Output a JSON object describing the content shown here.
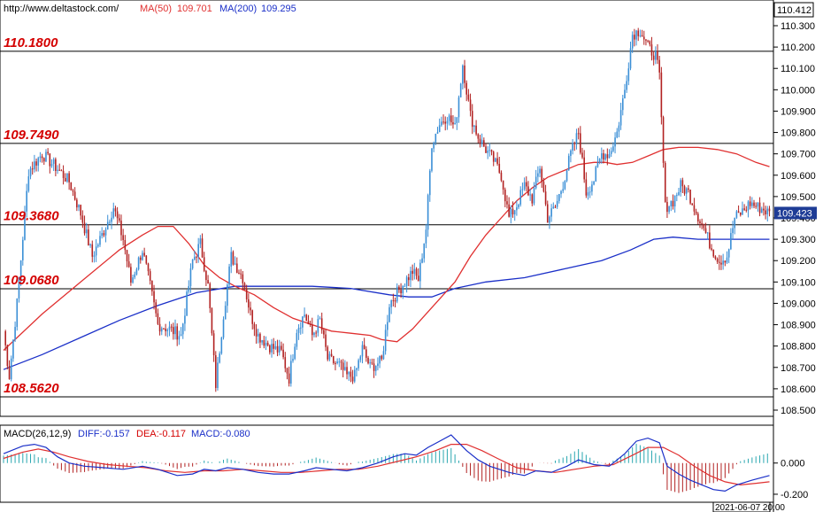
{
  "header": {
    "site": "http://www.deltastock.com/",
    "ma50_label": "MA(50)",
    "ma50_value": "109.701",
    "ma200_label": "MA(200)",
    "ma200_value": "109.295"
  },
  "macd_header": {
    "label": "MACD(26,12,9)",
    "diff": "DIFF:-0.157",
    "dea": "DEA:-0.117",
    "macd": "MACD:-0.080"
  },
  "colors": {
    "up": "#3b8fd6",
    "down": "#b22222",
    "ma50": "#e03030",
    "ma200": "#1a2fc8",
    "level_text": "#d40000",
    "current_tag": "#1e3c96"
  },
  "chart_data": {
    "type": "candlestick",
    "y_range": [
      108.45,
      110.33
    ],
    "y_ticks": [
      "110.300",
      "110.200",
      "110.100",
      "110.000",
      "109.900",
      "109.800",
      "109.700",
      "109.600",
      "109.500",
      "109.400",
      "109.300",
      "109.200",
      "109.100",
      "109.000",
      "108.900",
      "108.800",
      "108.700",
      "108.600",
      "108.500"
    ],
    "top_price_label": "110.412",
    "current_price_label": "109.423",
    "current_price": 109.423,
    "levels": [
      {
        "label": "110.1800",
        "value": 110.18
      },
      {
        "label": "109.7490",
        "value": 109.749
      },
      {
        "label": "109.3680",
        "value": 109.368
      },
      {
        "label": "109.0680",
        "value": 109.068
      },
      {
        "label": "108.5620",
        "value": 108.562
      }
    ],
    "anchors": [
      [
        0,
        108.87
      ],
      [
        3,
        108.66
      ],
      [
        7,
        109.0
      ],
      [
        13,
        109.62
      ],
      [
        20,
        109.7
      ],
      [
        28,
        109.63
      ],
      [
        34,
        109.57
      ],
      [
        40,
        109.42
      ],
      [
        46,
        109.22
      ],
      [
        52,
        109.34
      ],
      [
        57,
        109.45
      ],
      [
        62,
        109.3
      ],
      [
        66,
        109.1
      ],
      [
        72,
        109.25
      ],
      [
        76,
        109.08
      ],
      [
        80,
        108.9
      ],
      [
        86,
        108.88
      ],
      [
        92,
        108.85
      ],
      [
        98,
        109.2
      ],
      [
        102,
        109.28
      ],
      [
        106,
        109.08
      ],
      [
        110,
        108.62
      ],
      [
        114,
        108.95
      ],
      [
        118,
        109.22
      ],
      [
        124,
        109.12
      ],
      [
        128,
        108.95
      ],
      [
        132,
        108.85
      ],
      [
        138,
        108.8
      ],
      [
        144,
        108.77
      ],
      [
        148,
        108.65
      ],
      [
        152,
        108.88
      ],
      [
        156,
        108.95
      ],
      [
        160,
        108.85
      ],
      [
        164,
        108.92
      ],
      [
        168,
        108.74
      ],
      [
        174,
        108.71
      ],
      [
        178,
        108.66
      ],
      [
        182,
        108.66
      ],
      [
        186,
        108.79
      ],
      [
        190,
        108.7
      ],
      [
        196,
        108.73
      ],
      [
        200,
        109.0
      ],
      [
        204,
        109.05
      ],
      [
        208,
        109.1
      ],
      [
        212,
        109.15
      ],
      [
        215,
        109.11
      ],
      [
        219,
        109.35
      ],
      [
        222,
        109.75
      ],
      [
        226,
        109.84
      ],
      [
        230,
        109.88
      ],
      [
        234,
        109.82
      ],
      [
        238,
        110.12
      ],
      [
        242,
        109.88
      ],
      [
        246,
        109.78
      ],
      [
        250,
        109.72
      ],
      [
        254,
        109.67
      ],
      [
        258,
        109.6
      ],
      [
        262,
        109.4
      ],
      [
        266,
        109.46
      ],
      [
        270,
        109.55
      ],
      [
        274,
        109.49
      ],
      [
        278,
        109.64
      ],
      [
        282,
        109.4
      ],
      [
        286,
        109.45
      ],
      [
        290,
        109.56
      ],
      [
        294,
        109.7
      ],
      [
        298,
        109.8
      ],
      [
        302,
        109.52
      ],
      [
        306,
        109.58
      ],
      [
        310,
        109.7
      ],
      [
        314,
        109.7
      ],
      [
        318,
        109.8
      ],
      [
        322,
        110.0
      ],
      [
        326,
        110.26
      ],
      [
        330,
        110.28
      ],
      [
        334,
        110.2
      ],
      [
        338,
        110.16
      ],
      [
        340,
        110.06
      ],
      [
        343,
        109.45
      ],
      [
        347,
        109.48
      ],
      [
        351,
        109.55
      ],
      [
        355,
        109.52
      ],
      [
        359,
        109.43
      ],
      [
        363,
        109.35
      ],
      [
        367,
        109.26
      ],
      [
        371,
        109.2
      ],
      [
        375,
        109.22
      ],
      [
        379,
        109.4
      ],
      [
        383,
        109.43
      ],
      [
        387,
        109.47
      ],
      [
        391,
        109.45
      ],
      [
        394,
        109.44
      ],
      [
        397,
        109.42
      ]
    ],
    "ma50": [
      [
        0,
        108.78
      ],
      [
        20,
        108.95
      ],
      [
        40,
        109.1
      ],
      [
        60,
        109.25
      ],
      [
        72,
        109.32
      ],
      [
        80,
        109.36
      ],
      [
        88,
        109.36
      ],
      [
        96,
        109.28
      ],
      [
        104,
        109.18
      ],
      [
        112,
        109.12
      ],
      [
        120,
        109.08
      ],
      [
        130,
        109.04
      ],
      [
        140,
        108.98
      ],
      [
        150,
        108.93
      ],
      [
        160,
        108.9
      ],
      [
        170,
        108.87
      ],
      [
        180,
        108.86
      ],
      [
        190,
        108.85
      ],
      [
        196,
        108.83
      ],
      [
        204,
        108.82
      ],
      [
        212,
        108.88
      ],
      [
        220,
        108.96
      ],
      [
        226,
        109.02
      ],
      [
        234,
        109.1
      ],
      [
        242,
        109.22
      ],
      [
        250,
        109.32
      ],
      [
        258,
        109.4
      ],
      [
        266,
        109.48
      ],
      [
        274,
        109.54
      ],
      [
        282,
        109.59
      ],
      [
        290,
        109.62
      ],
      [
        298,
        109.65
      ],
      [
        306,
        109.66
      ],
      [
        312,
        109.66
      ],
      [
        318,
        109.65
      ],
      [
        326,
        109.66
      ],
      [
        334,
        109.69
      ],
      [
        342,
        109.72
      ],
      [
        350,
        109.73
      ],
      [
        360,
        109.73
      ],
      [
        370,
        109.72
      ],
      [
        380,
        109.7
      ],
      [
        390,
        109.66
      ],
      [
        397,
        109.64
      ]
    ],
    "ma200": [
      [
        0,
        108.69
      ],
      [
        20,
        108.76
      ],
      [
        40,
        108.84
      ],
      [
        60,
        108.92
      ],
      [
        80,
        108.99
      ],
      [
        100,
        109.05
      ],
      [
        120,
        109.08
      ],
      [
        140,
        109.08
      ],
      [
        160,
        109.08
      ],
      [
        180,
        109.07
      ],
      [
        200,
        109.04
      ],
      [
        210,
        109.03
      ],
      [
        222,
        109.03
      ],
      [
        234,
        109.07
      ],
      [
        250,
        109.1
      ],
      [
        270,
        109.12
      ],
      [
        290,
        109.16
      ],
      [
        310,
        109.2
      ],
      [
        325,
        109.25
      ],
      [
        337,
        109.3
      ],
      [
        347,
        109.31
      ],
      [
        360,
        109.3
      ],
      [
        370,
        109.3
      ],
      [
        380,
        109.3
      ],
      [
        390,
        109.3
      ],
      [
        397,
        109.3
      ]
    ],
    "macd": {
      "y_range": [
        -0.24,
        0.22
      ],
      "y_ticks": [
        "0.000",
        "-0.200"
      ],
      "y_tick_values": [
        0,
        -0.2
      ],
      "diff": [
        [
          0,
          0.06
        ],
        [
          10,
          0.11
        ],
        [
          16,
          0.12
        ],
        [
          22,
          0.1
        ],
        [
          28,
          0.04
        ],
        [
          34,
          0.0
        ],
        [
          42,
          -0.02
        ],
        [
          52,
          -0.03
        ],
        [
          62,
          -0.04
        ],
        [
          72,
          -0.02
        ],
        [
          80,
          -0.04
        ],
        [
          90,
          -0.08
        ],
        [
          98,
          -0.07
        ],
        [
          104,
          -0.04
        ],
        [
          110,
          -0.05
        ],
        [
          116,
          -0.03
        ],
        [
          124,
          -0.04
        ],
        [
          132,
          -0.06
        ],
        [
          140,
          -0.07
        ],
        [
          148,
          -0.07
        ],
        [
          156,
          -0.05
        ],
        [
          162,
          -0.03
        ],
        [
          170,
          -0.04
        ],
        [
          178,
          -0.05
        ],
        [
          186,
          -0.03
        ],
        [
          194,
          0.0
        ],
        [
          202,
          0.04
        ],
        [
          208,
          0.06
        ],
        [
          214,
          0.05
        ],
        [
          220,
          0.1
        ],
        [
          226,
          0.14
        ],
        [
          232,
          0.18
        ],
        [
          240,
          0.08
        ],
        [
          246,
          0.02
        ],
        [
          252,
          -0.02
        ],
        [
          262,
          -0.06
        ],
        [
          270,
          -0.08
        ],
        [
          276,
          -0.05
        ],
        [
          284,
          -0.06
        ],
        [
          292,
          -0.02
        ],
        [
          298,
          0.02
        ],
        [
          306,
          -0.01
        ],
        [
          314,
          -0.02
        ],
        [
          322,
          0.06
        ],
        [
          328,
          0.14
        ],
        [
          334,
          0.16
        ],
        [
          340,
          0.13
        ],
        [
          344,
          -0.02
        ],
        [
          350,
          -0.07
        ],
        [
          356,
          -0.11
        ],
        [
          362,
          -0.14
        ],
        [
          368,
          -0.17
        ],
        [
          374,
          -0.18
        ],
        [
          380,
          -0.14
        ],
        [
          388,
          -0.11
        ],
        [
          397,
          -0.08
        ]
      ],
      "dea": [
        [
          0,
          0.03
        ],
        [
          10,
          0.07
        ],
        [
          18,
          0.09
        ],
        [
          26,
          0.07
        ],
        [
          34,
          0.04
        ],
        [
          44,
          0.01
        ],
        [
          54,
          -0.01
        ],
        [
          64,
          -0.02
        ],
        [
          74,
          -0.03
        ],
        [
          84,
          -0.05
        ],
        [
          94,
          -0.06
        ],
        [
          104,
          -0.05
        ],
        [
          114,
          -0.05
        ],
        [
          124,
          -0.04
        ],
        [
          134,
          -0.05
        ],
        [
          144,
          -0.06
        ],
        [
          154,
          -0.06
        ],
        [
          164,
          -0.05
        ],
        [
          174,
          -0.04
        ],
        [
          184,
          -0.04
        ],
        [
          194,
          -0.02
        ],
        [
          204,
          0.01
        ],
        [
          214,
          0.04
        ],
        [
          224,
          0.08
        ],
        [
          232,
          0.12
        ],
        [
          240,
          0.12
        ],
        [
          248,
          0.08
        ],
        [
          256,
          0.03
        ],
        [
          266,
          -0.03
        ],
        [
          276,
          -0.05
        ],
        [
          286,
          -0.06
        ],
        [
          296,
          -0.04
        ],
        [
          306,
          -0.02
        ],
        [
          316,
          -0.01
        ],
        [
          326,
          0.05
        ],
        [
          334,
          0.1
        ],
        [
          342,
          0.1
        ],
        [
          350,
          0.05
        ],
        [
          358,
          -0.02
        ],
        [
          366,
          -0.08
        ],
        [
          374,
          -0.12
        ],
        [
          382,
          -0.14
        ],
        [
          390,
          -0.13
        ],
        [
          397,
          -0.12
        ]
      ]
    },
    "time_label": "2021-06-07 20:00"
  }
}
